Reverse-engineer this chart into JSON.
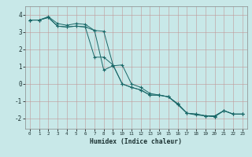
{
  "xlabel": "Humidex (Indice chaleur)",
  "bg_color": "#c8e8e8",
  "grid_color": "#b0c8c8",
  "line_color": "#1a6868",
  "xlim": [
    -0.5,
    23.5
  ],
  "ylim": [
    -2.6,
    4.5
  ],
  "yticks": [
    -2,
    -1,
    0,
    1,
    2,
    3,
    4
  ],
  "xticks": [
    0,
    1,
    2,
    3,
    4,
    5,
    6,
    7,
    8,
    9,
    10,
    11,
    12,
    13,
    14,
    15,
    16,
    17,
    18,
    19,
    20,
    21,
    22,
    23
  ],
  "series": [
    {
      "x": [
        0,
        1,
        2,
        3,
        4,
        5,
        6,
        7,
        8,
        9,
        10,
        11,
        12,
        13,
        14,
        15,
        16,
        17,
        18,
        19,
        20,
        21,
        22,
        23
      ],
      "y": [
        3.7,
        3.7,
        3.9,
        3.5,
        3.4,
        3.5,
        3.45,
        3.1,
        0.8,
        1.05,
        1.1,
        0.0,
        -0.2,
        -0.55,
        -0.65,
        -0.75,
        -1.2,
        -1.7,
        -1.8,
        -1.85,
        -1.85,
        -1.55,
        -1.75,
        -1.75
      ]
    },
    {
      "x": [
        0,
        1,
        2,
        3,
        4,
        5,
        6,
        7,
        8,
        9,
        10,
        11,
        12,
        13,
        14,
        15,
        16,
        17,
        18,
        19,
        20,
        21,
        22,
        23
      ],
      "y": [
        3.7,
        3.7,
        3.85,
        3.35,
        3.3,
        3.35,
        3.3,
        1.55,
        1.55,
        1.1,
        0.0,
        -0.2,
        -0.35,
        -0.65,
        -0.65,
        -0.75,
        -1.15,
        -1.7,
        -1.75,
        -1.85,
        -1.9,
        -1.55,
        -1.75,
        -1.75
      ]
    },
    {
      "x": [
        0,
        1,
        2,
        3,
        4,
        5,
        6,
        7,
        8,
        9,
        10,
        11,
        12,
        13,
        14,
        15,
        16,
        17,
        18,
        19,
        20,
        21,
        22,
        23
      ],
      "y": [
        3.7,
        3.7,
        3.85,
        3.35,
        3.3,
        3.35,
        3.3,
        3.1,
        3.05,
        1.1,
        0.0,
        -0.2,
        -0.35,
        -0.65,
        -0.65,
        -0.75,
        -1.15,
        -1.7,
        -1.75,
        -1.85,
        -1.9,
        -1.55,
        -1.75,
        -1.75
      ]
    }
  ]
}
